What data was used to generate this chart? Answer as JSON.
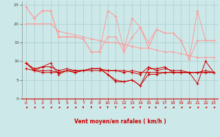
{
  "bg_color": "#cce8e8",
  "grid_color": "#aacccc",
  "line_color_light": "#ff9999",
  "line_color_dark": "#cc0000",
  "xlabel": "Vent moyen/en rafales ( km/h )",
  "xlabel_color": "#cc0000",
  "ylim": [
    0,
    26
  ],
  "xlim": [
    -0.5,
    23.5
  ],
  "yticks": [
    0,
    5,
    10,
    15,
    20,
    25
  ],
  "xticks": [
    0,
    1,
    2,
    3,
    4,
    5,
    6,
    7,
    8,
    9,
    10,
    11,
    12,
    13,
    14,
    15,
    16,
    17,
    18,
    19,
    20,
    21,
    22,
    23
  ],
  "series_light": [
    [
      24.5,
      21.5,
      23.5,
      23.5,
      16.5,
      16.5,
      16.5,
      16.0,
      12.5,
      12.5,
      23.5,
      22.0,
      13.0,
      21.5,
      19.0,
      13.5,
      18.5,
      17.5,
      17.5,
      15.5,
      10.5,
      23.5,
      15.5,
      15.5
    ],
    [
      24.5,
      21.5,
      23.5,
      23.5,
      16.5,
      16.5,
      16.5,
      16.0,
      12.5,
      12.5,
      16.5,
      16.5,
      12.5,
      16.5,
      19.0,
      15.0,
      18.5,
      17.5,
      17.5,
      15.5,
      10.5,
      15.5,
      15.5,
      15.5
    ],
    [
      20.0,
      20.0,
      20.0,
      20.0,
      18.0,
      17.5,
      17.0,
      16.5,
      16.0,
      15.5,
      15.0,
      15.0,
      14.5,
      14.0,
      13.5,
      13.5,
      13.0,
      12.5,
      12.5,
      12.0,
      11.5,
      11.0,
      11.0,
      11.0
    ]
  ],
  "series_dark": [
    [
      9.5,
      7.5,
      8.5,
      9.5,
      6.5,
      7.5,
      7.0,
      7.5,
      8.0,
      8.0,
      6.5,
      4.5,
      4.5,
      5.0,
      3.5,
      8.0,
      8.0,
      8.5,
      7.0,
      7.0,
      7.0,
      4.0,
      10.0,
      7.0
    ],
    [
      9.5,
      7.5,
      7.5,
      7.5,
      7.0,
      7.5,
      7.0,
      7.5,
      8.0,
      8.0,
      6.5,
      5.0,
      4.5,
      5.0,
      3.5,
      6.5,
      6.5,
      7.0,
      7.0,
      7.0,
      7.0,
      7.0,
      7.0,
      7.0
    ],
    [
      9.5,
      8.0,
      8.5,
      8.5,
      7.5,
      8.0,
      7.5,
      7.5,
      8.0,
      8.0,
      7.5,
      7.5,
      7.5,
      7.0,
      6.5,
      8.5,
      7.5,
      8.0,
      7.5,
      7.5,
      7.0,
      7.0,
      7.5,
      7.0
    ],
    [
      8.0,
      7.5,
      7.0,
      7.0,
      7.0,
      7.5,
      7.5,
      7.5,
      7.5,
      7.5,
      7.5,
      7.5,
      7.0,
      7.5,
      7.0,
      7.0,
      7.0,
      7.0,
      7.0,
      7.0,
      7.0,
      7.0,
      7.0,
      7.0
    ]
  ],
  "arrow_angles_deg": [
    225,
    225,
    225,
    225,
    225,
    225,
    225,
    270,
    270,
    225,
    270,
    270,
    225,
    225,
    270,
    225,
    315,
    225,
    225,
    225,
    225,
    225,
    225,
    225
  ]
}
